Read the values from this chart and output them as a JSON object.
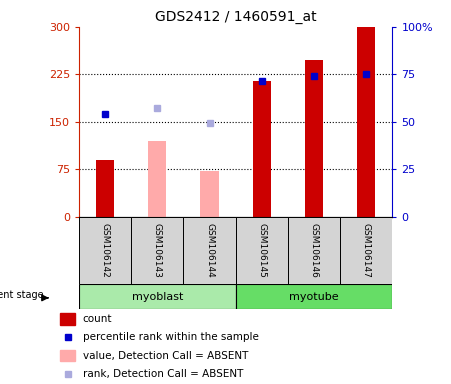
{
  "title": "GDS2412 / 1460591_at",
  "samples": [
    "GSM106142",
    "GSM106143",
    "GSM106144",
    "GSM106145",
    "GSM106146",
    "GSM106147"
  ],
  "bar_values": [
    90,
    null,
    null,
    215,
    248,
    300
  ],
  "bar_absent_values": [
    null,
    120,
    73,
    null,
    null,
    null
  ],
  "bar_color": "#cc0000",
  "bar_absent_color": "#ffaaaa",
  "rank_present": [
    163,
    null,
    null,
    215,
    222,
    225
  ],
  "rank_absent": [
    null,
    172,
    148,
    null,
    null,
    null
  ],
  "rank_present_color": "#0000cc",
  "rank_absent_color": "#aaaadd",
  "ylim_left": [
    0,
    300
  ],
  "yticks_left": [
    0,
    75,
    150,
    225,
    300
  ],
  "ytick_labels_left": [
    "0",
    "75",
    "150",
    "225",
    "300"
  ],
  "yticks_right": [
    0,
    25,
    50,
    75,
    100
  ],
  "ytick_labels_right": [
    "0",
    "25",
    "50",
    "75",
    "100%"
  ],
  "hlines": [
    75,
    150,
    225
  ],
  "left_tick_color": "#cc2200",
  "right_tick_color": "#0000cc",
  "legend_items": [
    {
      "label": "count",
      "color": "#cc0000",
      "type": "rect"
    },
    {
      "label": "percentile rank within the sample",
      "color": "#0000cc",
      "type": "square"
    },
    {
      "label": "value, Detection Call = ABSENT",
      "color": "#ffaaaa",
      "type": "rect"
    },
    {
      "label": "rank, Detection Call = ABSENT",
      "color": "#aaaadd",
      "type": "square"
    }
  ],
  "bar_width": 0.35,
  "myoblast_color": "#aaeaaa",
  "myotube_color": "#66dd66",
  "sample_bg_color": "#d4d4d4"
}
